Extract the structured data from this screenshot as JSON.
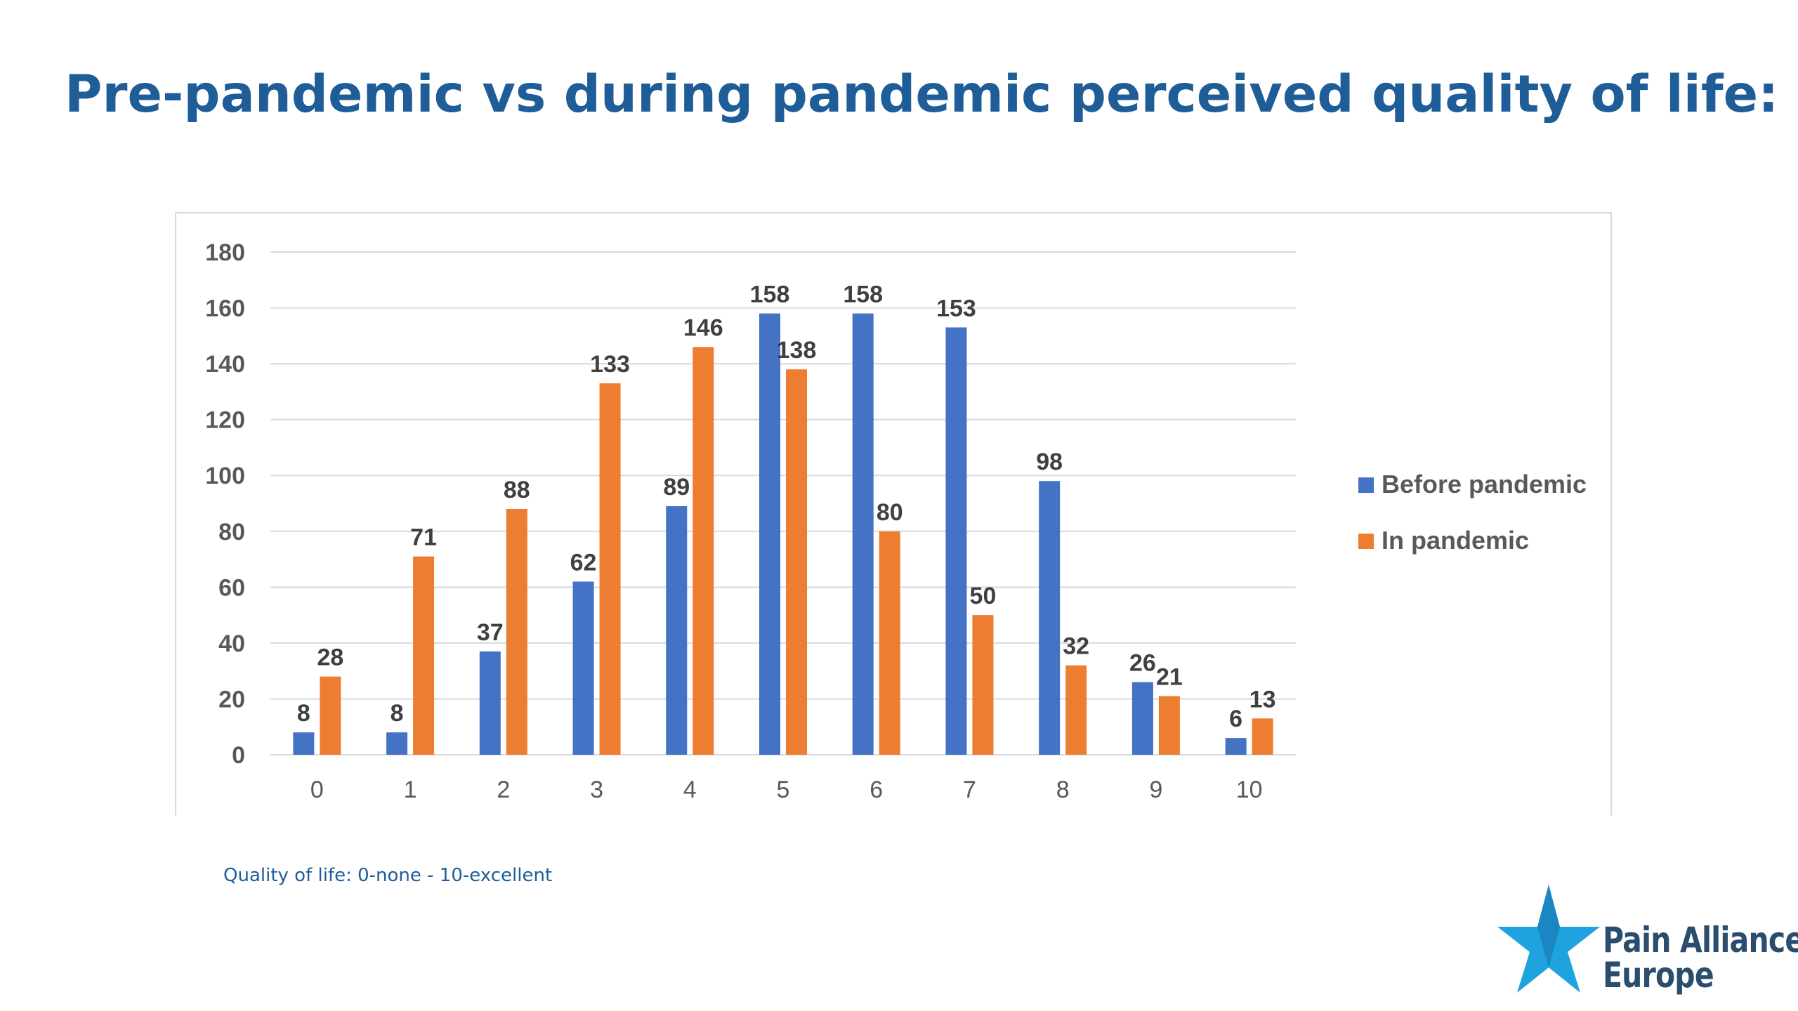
{
  "slide": {
    "title": "Pre-pandemic vs during pandemic perceived quality of life:",
    "footnote": "Quality of life: 0-none - 10-excellent"
  },
  "logo": {
    "line1": "Pain Alliance",
    "line2": "Europe",
    "star_color": "#1ea3df",
    "text_color": "#2a4d6e",
    "icon": "star-icon"
  },
  "colors": {
    "title": "#1f5d99",
    "before": "#4472c4",
    "in": "#ed7d31",
    "gridline": "#d9d9d9",
    "axis_text": "#595959",
    "label_text": "#404040"
  },
  "chart_data": {
    "type": "bar",
    "categories": [
      "0",
      "1",
      "2",
      "3",
      "4",
      "5",
      "6",
      "7",
      "8",
      "9",
      "10"
    ],
    "series": [
      {
        "name": "Before pandemic",
        "values": [
          8,
          8,
          37,
          62,
          89,
          158,
          158,
          153,
          98,
          26,
          6
        ]
      },
      {
        "name": "In pandemic",
        "values": [
          28,
          71,
          88,
          133,
          146,
          138,
          80,
          50,
          32,
          21,
          13
        ]
      }
    ],
    "y_ticks": [
      "0",
      "20",
      "40",
      "60",
      "80",
      "100",
      "120",
      "140",
      "160",
      "180"
    ],
    "ylim": [
      0,
      180
    ],
    "grid": true,
    "legend_position": "right",
    "data_labels": true
  }
}
